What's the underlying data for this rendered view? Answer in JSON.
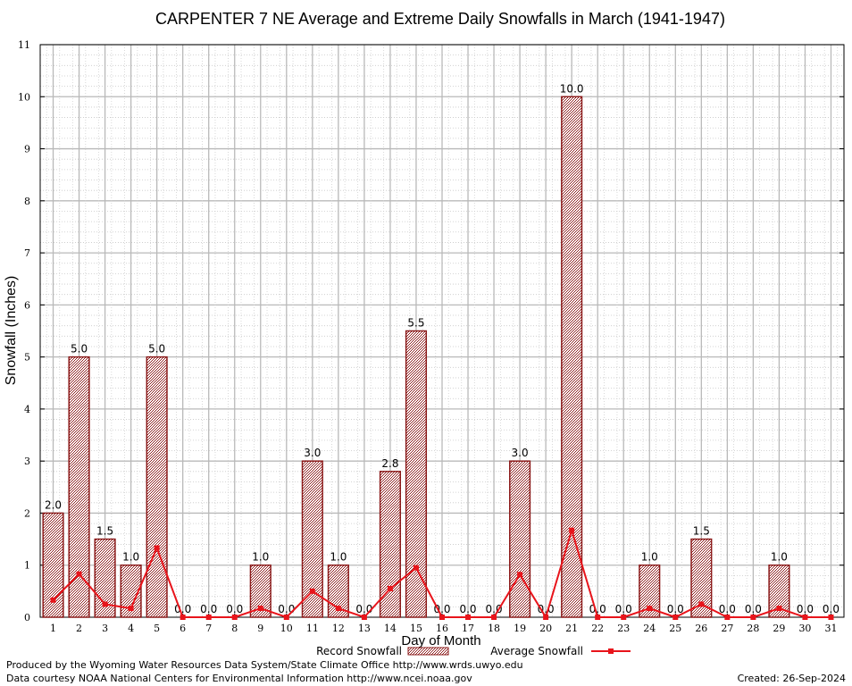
{
  "chart_data": {
    "type": "bar",
    "title": "CARPENTER 7 NE Average and Extreme Daily Snowfalls in March (1941-1947)",
    "xlabel": "Day of Month",
    "ylabel": "Snowfall (Inches)",
    "ylim": [
      0,
      11
    ],
    "yticks": [
      0,
      1,
      2,
      3,
      4,
      5,
      6,
      7,
      8,
      9,
      10,
      11
    ],
    "categories": [
      "1",
      "2",
      "3",
      "4",
      "5",
      "6",
      "7",
      "8",
      "9",
      "10",
      "11",
      "12",
      "13",
      "14",
      "15",
      "16",
      "17",
      "18",
      "19",
      "20",
      "21",
      "22",
      "23",
      "24",
      "25",
      "26",
      "27",
      "28",
      "29",
      "30",
      "31"
    ],
    "series": [
      {
        "name": "Record Snowfall",
        "kind": "bar",
        "values": [
          2.0,
          5.0,
          1.5,
          1.0,
          5.0,
          0.0,
          0.0,
          0.0,
          1.0,
          0.0,
          3.0,
          1.0,
          0.0,
          2.8,
          5.5,
          0.0,
          0.0,
          0.0,
          3.0,
          0.0,
          10.0,
          0.0,
          0.0,
          1.0,
          0.0,
          1.5,
          0.0,
          0.0,
          1.0,
          0.0,
          0.0
        ],
        "labels": [
          "2.0",
          "5.0",
          "1.5",
          "1.0",
          "5.0",
          "0.0",
          "0.0",
          "0.0",
          "1.0",
          "0.0",
          "3.0",
          "1.0",
          "0.0",
          "2.8",
          "5.5",
          "0.0",
          "0.0",
          "0.0",
          "3.0",
          "0.0",
          "10.0",
          "0.0",
          "0.0",
          "1.0",
          "0.0",
          "1.5",
          "0.0",
          "0.0",
          "1.0",
          "0.0",
          "0.0"
        ],
        "color": "#8b1a1a"
      },
      {
        "name": "Average Snowfall",
        "kind": "line",
        "values": [
          0.33,
          0.83,
          0.25,
          0.17,
          1.33,
          0.0,
          0.0,
          0.0,
          0.17,
          0.0,
          0.5,
          0.17,
          0.0,
          0.55,
          0.95,
          0.0,
          0.0,
          0.0,
          0.82,
          0.0,
          1.67,
          0.0,
          0.0,
          0.17,
          0.0,
          0.25,
          0.0,
          0.0,
          0.17,
          0.0,
          0.0
        ],
        "color": "#e8141b"
      }
    ],
    "grid": true,
    "legend_position": "bottom"
  },
  "footer": {
    "left_line1": "Produced by the Wyoming Water Resources Data System/State Climate Office http://www.wrds.uwyo.edu",
    "left_line2": "Data courtesy NOAA National Centers for Environmental Information http://www.ncei.noaa.gov",
    "created": "Created:  26-Sep-2024"
  }
}
